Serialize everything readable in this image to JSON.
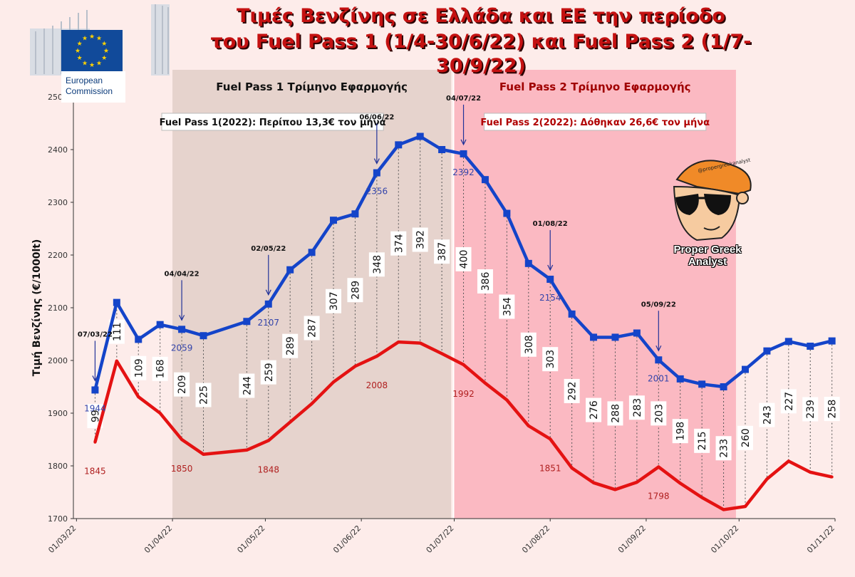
{
  "title_line1": "Τιμές Βενζίνης σε Ελλάδα και ΕΕ την περίοδο",
  "title_line2": "του Fuel Pass 1 (1/4-30/6/22) και Fuel Pass 2 (1/7-30/9/22)",
  "logo": {
    "text_line1": "European",
    "text_line2": "Commission"
  },
  "author": {
    "name": "Proper Greek Analyst",
    "handle": "@propergreekanalyst"
  },
  "colors": {
    "greece": "#1444c9",
    "eu": "#e41212",
    "period1": "#e6d3cd",
    "period2": "#fbb9c2",
    "labels_gr": "#3344aa",
    "labels_eu": "#b02020"
  },
  "chart_data": {
    "type": "line",
    "ylabel": "Τιμή Βενζίνης (€/1000lt)",
    "ylim": [
      1700,
      2500
    ],
    "yticks": [
      1700,
      1800,
      1900,
      2000,
      2100,
      2200,
      2300,
      2400,
      2500
    ],
    "xlim": [
      "2022-02-28",
      "2022-11-01"
    ],
    "xticks": [
      "01/03/22",
      "01/04/22",
      "01/05/22",
      "01/06/22",
      "01/07/22",
      "01/08/22",
      "01/09/22",
      "01/10/22",
      "01/11/22"
    ],
    "xtick_dates": [
      "2022-03-01",
      "2022-04-01",
      "2022-05-01",
      "2022-06-01",
      "2022-07-01",
      "2022-08-01",
      "2022-09-01",
      "2022-10-01",
      "2022-11-01"
    ],
    "dates": [
      "2022-03-07",
      "2022-03-14",
      "2022-03-21",
      "2022-03-28",
      "2022-04-04",
      "2022-04-11",
      "2022-04-25",
      "2022-05-02",
      "2022-05-09",
      "2022-05-16",
      "2022-05-23",
      "2022-05-30",
      "2022-06-06",
      "2022-06-13",
      "2022-06-20",
      "2022-06-27",
      "2022-07-04",
      "2022-07-11",
      "2022-07-18",
      "2022-07-25",
      "2022-08-01",
      "2022-08-08",
      "2022-08-15",
      "2022-08-22",
      "2022-08-29",
      "2022-09-05",
      "2022-09-12",
      "2022-09-19",
      "2022-09-26",
      "2022-10-03",
      "2022-10-10",
      "2022-10-17",
      "2022-10-24",
      "2022-10-31"
    ],
    "series": [
      {
        "values": [
          1944,
          2110,
          2040,
          2068,
          2059,
          2047,
          2074,
          2107,
          2172,
          2205,
          2266,
          2278,
          2356,
          2409,
          2425,
          2400,
          2392,
          2343,
          2279,
          2184,
          2154,
          2088,
          2044,
          2044,
          2052,
          2001,
          1965,
          1955,
          1950,
          1983,
          2018,
          2036,
          2027,
          2037
        ]
      },
      {
        "values": [
          1845,
          1999,
          1931,
          1900,
          1850,
          1822,
          1830,
          1848,
          1883,
          1918,
          1959,
          1989,
          2008,
          2035,
          2033,
          2013,
          1992,
          1957,
          1925,
          1876,
          1851,
          1796,
          1768,
          1755,
          1769,
          1798,
          1767,
          1740,
          1717,
          1723,
          1775,
          1809,
          1788,
          1779
        ]
      }
    ],
    "differences": [
      99,
      111,
      109,
      168,
      209,
      225,
      244,
      259,
      289,
      287,
      307,
      289,
      348,
      374,
      392,
      387,
      400,
      386,
      354,
      308,
      303,
      292,
      276,
      288,
      283,
      203,
      198,
      215,
      233,
      260,
      243,
      227,
      239,
      258
    ],
    "gr_point_labels": [
      {
        "index": 0,
        "text": "1944"
      },
      {
        "index": 4,
        "text": "2059"
      },
      {
        "index": 7,
        "text": "2107"
      },
      {
        "index": 12,
        "text": "2356"
      },
      {
        "index": 16,
        "text": "2392"
      },
      {
        "index": 20,
        "text": "2154"
      },
      {
        "index": 25,
        "text": "2001"
      }
    ],
    "eu_point_labels": [
      {
        "index": 0,
        "text": "1845"
      },
      {
        "index": 4,
        "text": "1850"
      },
      {
        "index": 7,
        "text": "1848"
      },
      {
        "index": 12,
        "text": "2008"
      },
      {
        "index": 16,
        "text": "1992"
      },
      {
        "index": 20,
        "text": "1851"
      },
      {
        "index": 25,
        "text": "1798"
      }
    ],
    "date_annotations": [
      {
        "index": 0,
        "text": "07/03/22"
      },
      {
        "index": 4,
        "text": "04/04/22"
      },
      {
        "index": 7,
        "text": "02/05/22"
      },
      {
        "index": 12,
        "text": "06/06/22"
      },
      {
        "index": 16,
        "text": "04/07/22"
      },
      {
        "index": 20,
        "text": "01/08/22"
      },
      {
        "index": 25,
        "text": "05/09/22"
      }
    ],
    "periods": [
      {
        "start": "2022-04-01",
        "end": "2022-06-30",
        "title": "Fuel Pass 1 Τρίμηνο Εφαρμογής",
        "note": "Fuel Pass 1(2022): Περίπου 13,3€ τον μήνα"
      },
      {
        "start": "2022-07-01",
        "end": "2022-09-30",
        "title": "Fuel Pass 2 Τρίμηνο Εφαρμογής",
        "note": "Fuel Pass 2(2022): Δόθηκαν 26,6€ τον μήνα"
      }
    ]
  }
}
